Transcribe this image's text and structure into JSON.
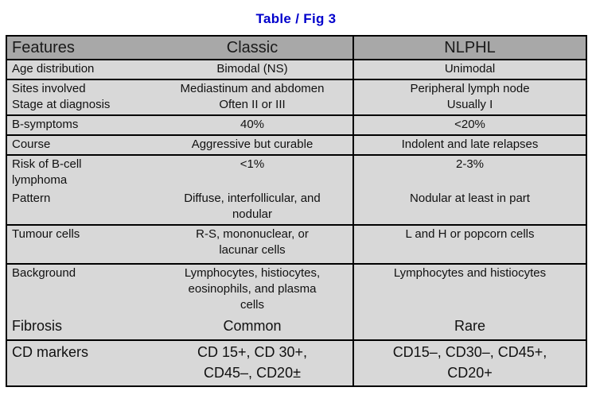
{
  "title": "Table / Fig 3",
  "colors": {
    "title_text": "#0000cc",
    "header_background": "#a8a8a8",
    "body_background": "#d8d8d8",
    "border": "#000000",
    "page_background": "#ffffff"
  },
  "table": {
    "header": {
      "features": "Features",
      "classic": "Classic",
      "nlphl": "NLPHL"
    },
    "rows": [
      {
        "feature": "Age distribution",
        "classic": "Bimodal (NS)",
        "nlphl": "Unimodal"
      },
      {
        "feature": "Sites involved\nStage at diagnosis",
        "classic": "Mediastinum and abdomen\nOften II or III",
        "nlphl": "Peripheral lymph node\nUsually I"
      },
      {
        "feature": "B-symptoms",
        "classic": "40%",
        "nlphl": "<20%"
      },
      {
        "feature": "Course",
        "classic": "Aggressive but curable",
        "nlphl": "Indolent and late relapses"
      },
      {
        "feature": "Risk of B-cell\nlymphoma",
        "classic": "<1%",
        "nlphl": "2-3%"
      },
      {
        "feature": "Pattern",
        "classic": "Diffuse, interfollicular, and\nnodular",
        "nlphl": "Nodular at least in part"
      },
      {
        "feature": "Tumour cells",
        "classic": "R-S, mononuclear, or\nlacunar cells",
        "nlphl": "L and H or popcorn cells"
      },
      {
        "feature": "Background",
        "classic": "Lymphocytes, histiocytes,\neosinophils, and plasma\ncells",
        "nlphl": "Lymphocytes and histiocytes"
      },
      {
        "feature": "Fibrosis",
        "classic": "Common",
        "nlphl": "Rare"
      },
      {
        "feature": "CD markers",
        "classic": "CD 15+, CD 30+,\nCD45–, CD20±",
        "nlphl": "CD15–, CD30–, CD45+,\nCD20+"
      }
    ]
  }
}
